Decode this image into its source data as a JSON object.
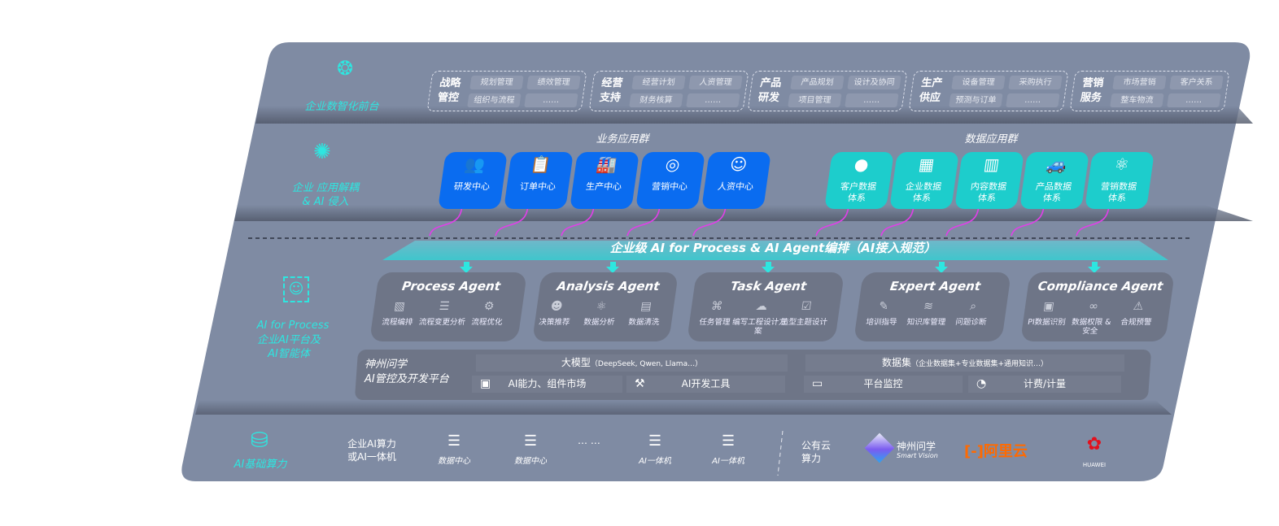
{
  "layers": {
    "front": {
      "label": "企业数智化前台",
      "icon": "brain-icon"
    },
    "apps": {
      "label": "企业 应用解耦\n& AI 侵入",
      "icon": "molecule-icon"
    },
    "ai": {
      "label_en": "AI for Process",
      "label_cn": "企业AI平台及\nAI智能体",
      "icon": "face-scan-icon"
    },
    "infra": {
      "label": "AI基础算力",
      "icon": "database-icon"
    }
  },
  "front_groups": [
    {
      "title": "战略\n管控",
      "items": [
        "规划管理",
        "绩效管理",
        "组织与流程",
        "……"
      ]
    },
    {
      "title": "经营\n支持",
      "items": [
        "经营计划",
        "人资管理",
        "财务核算",
        "……"
      ]
    },
    {
      "title": "产品\n研发",
      "items": [
        "产品规划",
        "设计及协同",
        "项目管理",
        "……"
      ]
    },
    {
      "title": "生产\n供应",
      "items": [
        "设备管理",
        "采购执行",
        "预测与订单",
        "……"
      ]
    },
    {
      "title": "营销\n服务",
      "items": [
        "市场营销",
        "客户关系",
        "整车物流",
        "……"
      ]
    }
  ],
  "business_apps": {
    "title": "业务应用群",
    "items": [
      {
        "label": "研发中心",
        "icon": "team-icon"
      },
      {
        "label": "订单中心",
        "icon": "clipboard-icon"
      },
      {
        "label": "生产中心",
        "icon": "factory-icon"
      },
      {
        "label": "营销中心",
        "icon": "target-icon"
      },
      {
        "label": "人资中心",
        "icon": "person-icon"
      }
    ]
  },
  "data_apps": {
    "title": "数据应用群",
    "items": [
      {
        "label": "客户数据\n体系",
        "icon": "user-icon"
      },
      {
        "label": "企业数据\n体系",
        "icon": "building-icon"
      },
      {
        "label": "内容数据\n体系",
        "icon": "books-icon"
      },
      {
        "label": "产品数据\n体系",
        "icon": "car-icon"
      },
      {
        "label": "营销数据\n体系",
        "icon": "atom-icon"
      }
    ]
  },
  "orchestration": "企业级 AI for Process & AI Agent编排（AI接入规范）",
  "agents": [
    {
      "name": "Process Agent",
      "caps": [
        {
          "label": "流程编排",
          "icon": "chart-icon"
        },
        {
          "label": "流程变更分析",
          "icon": "list-icon"
        },
        {
          "label": "流程优化",
          "icon": "optimize-icon"
        }
      ]
    },
    {
      "name": "Analysis Agent",
      "caps": [
        {
          "label": "决策推荐",
          "icon": "head-icon"
        },
        {
          "label": "数据分析",
          "icon": "atom-icon"
        },
        {
          "label": "数据清洗",
          "icon": "document-icon"
        }
      ]
    },
    {
      "name": "Task Agent",
      "caps": [
        {
          "label": "任务管理",
          "icon": "network-icon"
        },
        {
          "label": "编写工程设计方案",
          "icon": "cloud-icon"
        },
        {
          "label": "造型主题设计",
          "icon": "checklist-icon"
        }
      ]
    },
    {
      "name": "Expert Agent",
      "caps": [
        {
          "label": "培训指导",
          "icon": "pen-icon"
        },
        {
          "label": "知识库管理",
          "icon": "layers-icon"
        },
        {
          "label": "问题诊断",
          "icon": "diagnosis-icon"
        }
      ]
    },
    {
      "name": "Compliance Agent",
      "caps": [
        {
          "label": "PI数据识别",
          "icon": "id-icon"
        },
        {
          "label": "数据权限 &\n安全",
          "icon": "link-icon"
        },
        {
          "label": "合规预警",
          "icon": "alert-icon"
        }
      ]
    }
  ],
  "platform": {
    "title": "神州问学\nAI管控及开发平台",
    "model": "大模型",
    "model_note": "（DeepSeek, Qwen, Llama…）",
    "dataset": "数据集",
    "dataset_note": "（企业数据集+专业数据集+通用知识…）",
    "cells": [
      {
        "label": "AI能力、组件市场",
        "icon": "market-icon"
      },
      {
        "label": "AI开发工具",
        "icon": "tool-icon"
      },
      {
        "label": "平台监控",
        "icon": "monitor-icon"
      },
      {
        "label": "计费/计量",
        "icon": "gauge-icon"
      }
    ]
  },
  "infra": {
    "enterprise": "企业AI算力\n或AI一体机",
    "items": [
      {
        "label": "数据中心",
        "icon": "server-icon"
      },
      {
        "label": "数据中心",
        "icon": "server-icon"
      },
      {
        "label": "AI一体机",
        "icon": "server-icon"
      },
      {
        "label": "AI一体机",
        "icon": "server-icon"
      }
    ],
    "ellipsis": "… …",
    "public": "公有云\n算力",
    "vendors": [
      {
        "name": "神州问学",
        "sub": "Smart Vision"
      },
      {
        "name": "阿里云"
      },
      {
        "name": "HUAWEI"
      }
    ]
  },
  "colors": {
    "panel": "#7f8ba3",
    "blue": "#0a6cf0",
    "teal": "#1dcdcc",
    "accent": "#2ee6e0",
    "arrow": "#e040e8",
    "agent": "#6e7587"
  }
}
